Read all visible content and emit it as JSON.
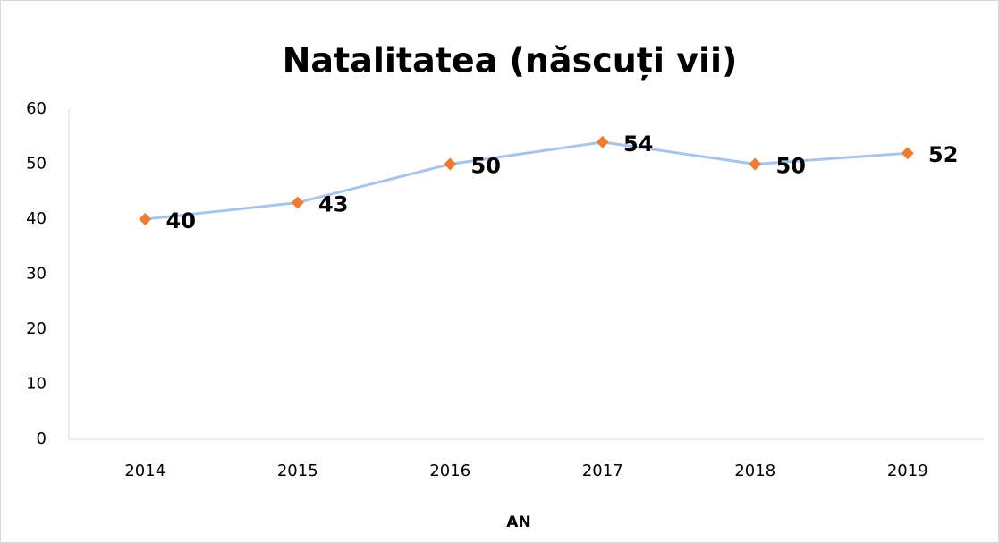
{
  "chart_data": {
    "type": "line",
    "title": "Natalitatea (născuți vii)",
    "x_label": "AN",
    "categories": [
      "2014",
      "2015",
      "2016",
      "2017",
      "2018",
      "2019"
    ],
    "values": [
      40,
      43,
      50,
      54,
      50,
      52
    ],
    "color": "#a9c4eb",
    "marker_color": "#ed7d31",
    "ylim": [
      0,
      60
    ],
    "yticks": [
      0,
      10,
      20,
      30,
      40,
      50,
      60
    ],
    "grid": false
  }
}
